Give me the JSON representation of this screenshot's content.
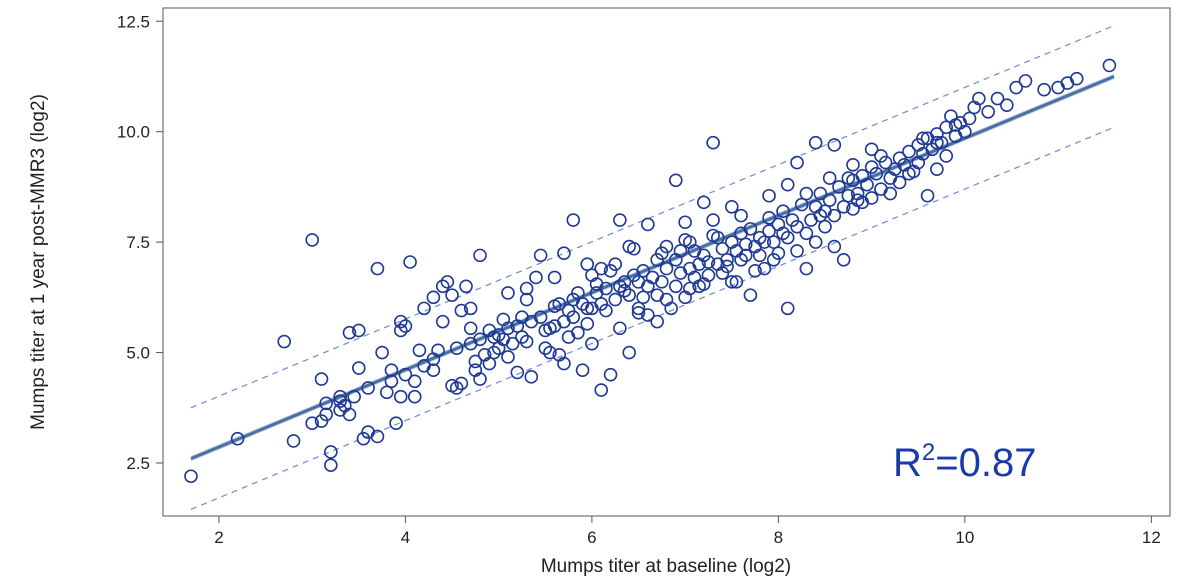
{
  "chart_data": {
    "type": "scatter",
    "title": "",
    "xlabel": "Mumps titer at baseline (log2)",
    "ylabel": "Mumps titer at 1 year post-MMR3 (log2)",
    "xlim": [
      1.4,
      12.2
    ],
    "ylim": [
      1.3,
      12.8
    ],
    "x_ticks": [
      {
        "value": 2,
        "label": "2"
      },
      {
        "value": 4,
        "label": "4"
      },
      {
        "value": 6,
        "label": "6"
      },
      {
        "value": 8,
        "label": "8"
      },
      {
        "value": 10,
        "label": "10"
      },
      {
        "value": 12,
        "label": "12"
      }
    ],
    "y_ticks": [
      {
        "value": 2.5,
        "label": "2.5"
      },
      {
        "value": 5.0,
        "label": "5.0"
      },
      {
        "value": 7.5,
        "label": "7.5"
      },
      {
        "value": 10.0,
        "label": "10.0"
      },
      {
        "value": 12.5,
        "label": "12.5"
      }
    ],
    "annotation": {
      "base": "R",
      "sup": "2",
      "value": "=0.87"
    },
    "colors": {
      "marker": "#1f3a93",
      "fit_line": "#4a6fa5",
      "confidence_band": "#b8c8e0",
      "prediction_band": "#7b8fd6",
      "annotation": "#1a3aa8"
    },
    "fit": {
      "x": [
        1.7,
        11.6
      ],
      "y": [
        2.6,
        11.25
      ],
      "band_halfwidth": 0.06
    },
    "prediction_band": {
      "upper": {
        "x": [
          1.7,
          11.6
        ],
        "y": [
          3.75,
          12.4
        ]
      },
      "lower": {
        "x": [
          1.7,
          11.6
        ],
        "y": [
          1.45,
          10.1
        ]
      }
    },
    "series": [
      {
        "points": [
          [
            1.7,
            2.2
          ],
          [
            2.2,
            3.05
          ],
          [
            2.8,
            3.0
          ],
          [
            2.7,
            5.25
          ],
          [
            3.0,
            7.55
          ],
          [
            3.1,
            4.4
          ],
          [
            3.0,
            3.4
          ],
          [
            3.1,
            3.45
          ],
          [
            3.15,
            3.85
          ],
          [
            3.2,
            2.45
          ],
          [
            3.2,
            2.75
          ],
          [
            3.3,
            3.7
          ],
          [
            3.35,
            3.8
          ],
          [
            3.3,
            3.9
          ],
          [
            3.4,
            3.6
          ],
          [
            3.45,
            4.0
          ],
          [
            3.4,
            5.45
          ],
          [
            3.5,
            5.5
          ],
          [
            3.55,
            3.05
          ],
          [
            3.6,
            3.2
          ],
          [
            3.7,
            6.9
          ],
          [
            3.75,
            5.0
          ],
          [
            3.8,
            4.1
          ],
          [
            3.7,
            3.1
          ],
          [
            3.85,
            4.35
          ],
          [
            3.9,
            3.4
          ],
          [
            3.95,
            4.0
          ],
          [
            3.95,
            5.7
          ],
          [
            3.95,
            5.5
          ],
          [
            4.0,
            4.5
          ],
          [
            4.1,
            4.0
          ],
          [
            4.1,
            4.35
          ],
          [
            4.05,
            7.05
          ],
          [
            4.2,
            4.7
          ],
          [
            4.2,
            6.0
          ],
          [
            4.3,
            6.25
          ],
          [
            4.3,
            4.85
          ],
          [
            4.35,
            5.05
          ],
          [
            4.4,
            6.5
          ],
          [
            4.45,
            6.6
          ],
          [
            4.5,
            4.25
          ],
          [
            4.55,
            4.2
          ],
          [
            4.6,
            4.3
          ],
          [
            4.5,
            6.3
          ],
          [
            4.65,
            6.5
          ],
          [
            4.7,
            6.0
          ],
          [
            4.7,
            5.2
          ],
          [
            4.75,
            4.8
          ],
          [
            4.75,
            4.6
          ],
          [
            4.8,
            5.3
          ],
          [
            4.8,
            4.4
          ],
          [
            4.85,
            4.95
          ],
          [
            4.9,
            5.5
          ],
          [
            4.9,
            4.75
          ],
          [
            4.95,
            5.0
          ],
          [
            5.0,
            5.4
          ],
          [
            5.0,
            5.1
          ],
          [
            5.05,
            5.3
          ],
          [
            5.1,
            4.9
          ],
          [
            5.1,
            5.55
          ],
          [
            5.15,
            5.2
          ],
          [
            5.2,
            5.6
          ],
          [
            5.2,
            4.55
          ],
          [
            5.25,
            5.8
          ],
          [
            5.3,
            5.25
          ],
          [
            5.3,
            6.45
          ],
          [
            5.35,
            4.45
          ],
          [
            5.45,
            5.8
          ],
          [
            5.45,
            7.2
          ],
          [
            5.5,
            5.5
          ],
          [
            5.5,
            5.1
          ],
          [
            5.55,
            5.0
          ],
          [
            5.6,
            5.6
          ],
          [
            5.6,
            6.05
          ],
          [
            5.65,
            4.95
          ],
          [
            5.7,
            4.75
          ],
          [
            5.7,
            5.7
          ],
          [
            5.75,
            5.35
          ],
          [
            5.8,
            6.2
          ],
          [
            5.8,
            5.8
          ],
          [
            5.85,
            5.45
          ],
          [
            5.9,
            4.6
          ],
          [
            5.95,
            6.0
          ],
          [
            5.95,
            5.65
          ],
          [
            6.0,
            6.0
          ],
          [
            6.0,
            5.2
          ],
          [
            6.05,
            6.35
          ],
          [
            6.1,
            6.1
          ],
          [
            6.1,
            4.15
          ],
          [
            6.15,
            5.95
          ],
          [
            6.2,
            4.5
          ],
          [
            6.25,
            6.2
          ],
          [
            6.25,
            7.0
          ],
          [
            6.3,
            6.5
          ],
          [
            6.3,
            5.55
          ],
          [
            6.35,
            6.4
          ],
          [
            6.4,
            7.4
          ],
          [
            6.4,
            5.0
          ],
          [
            6.45,
            7.35
          ],
          [
            6.5,
            6.6
          ],
          [
            6.5,
            6.0
          ],
          [
            6.55,
            6.85
          ],
          [
            6.6,
            5.85
          ],
          [
            6.6,
            6.5
          ],
          [
            6.65,
            6.7
          ],
          [
            6.7,
            7.1
          ],
          [
            6.7,
            6.3
          ],
          [
            6.75,
            6.6
          ],
          [
            6.8,
            7.4
          ],
          [
            6.8,
            6.9
          ],
          [
            6.85,
            6.0
          ],
          [
            6.9,
            6.5
          ],
          [
            6.9,
            7.1
          ],
          [
            6.95,
            6.8
          ],
          [
            7.0,
            7.55
          ],
          [
            7.0,
            6.25
          ],
          [
            7.05,
            6.9
          ],
          [
            7.1,
            6.7
          ],
          [
            7.1,
            7.3
          ],
          [
            7.15,
            7.0
          ],
          [
            7.2,
            6.55
          ],
          [
            7.2,
            7.2
          ],
          [
            7.25,
            6.75
          ],
          [
            7.3,
            7.65
          ],
          [
            7.3,
            8.0
          ],
          [
            7.35,
            7.0
          ],
          [
            7.4,
            6.8
          ],
          [
            7.4,
            7.35
          ],
          [
            7.45,
            7.1
          ],
          [
            7.5,
            6.6
          ],
          [
            7.5,
            7.5
          ],
          [
            7.55,
            7.3
          ],
          [
            7.6,
            7.1
          ],
          [
            7.6,
            7.7
          ],
          [
            7.65,
            7.45
          ],
          [
            7.7,
            6.3
          ],
          [
            7.7,
            7.8
          ],
          [
            7.75,
            7.4
          ],
          [
            7.8,
            7.6
          ],
          [
            7.8,
            7.2
          ],
          [
            7.85,
            6.9
          ],
          [
            7.9,
            7.75
          ],
          [
            7.9,
            8.05
          ],
          [
            7.95,
            7.5
          ],
          [
            8.0,
            7.9
          ],
          [
            8.0,
            7.25
          ],
          [
            8.05,
            8.2
          ],
          [
            8.1,
            7.6
          ],
          [
            8.1,
            6.0
          ],
          [
            8.15,
            8.0
          ],
          [
            8.2,
            7.85
          ],
          [
            8.2,
            7.3
          ],
          [
            8.25,
            8.35
          ],
          [
            8.3,
            7.7
          ],
          [
            8.3,
            6.9
          ],
          [
            8.35,
            8.0
          ],
          [
            8.4,
            8.3
          ],
          [
            8.4,
            7.5
          ],
          [
            8.45,
            8.6
          ],
          [
            8.5,
            8.2
          ],
          [
            8.5,
            7.85
          ],
          [
            8.55,
            8.45
          ],
          [
            8.6,
            8.1
          ],
          [
            8.6,
            7.4
          ],
          [
            8.65,
            8.75
          ],
          [
            8.7,
            8.3
          ],
          [
            8.7,
            7.1
          ],
          [
            8.75,
            8.55
          ],
          [
            8.8,
            8.9
          ],
          [
            8.8,
            8.25
          ],
          [
            8.85,
            8.6
          ],
          [
            8.9,
            9.0
          ],
          [
            8.9,
            8.4
          ],
          [
            8.95,
            8.8
          ],
          [
            9.0,
            9.2
          ],
          [
            9.0,
            8.5
          ],
          [
            9.05,
            9.05
          ],
          [
            9.1,
            8.7
          ],
          [
            9.15,
            9.3
          ],
          [
            9.2,
            8.95
          ],
          [
            9.2,
            8.6
          ],
          [
            9.25,
            9.15
          ],
          [
            9.3,
            9.4
          ],
          [
            9.3,
            8.85
          ],
          [
            9.35,
            9.25
          ],
          [
            9.4,
            9.55
          ],
          [
            9.45,
            9.1
          ],
          [
            9.5,
            9.7
          ],
          [
            9.5,
            9.3
          ],
          [
            9.55,
            9.5
          ],
          [
            9.6,
            9.85
          ],
          [
            9.6,
            8.55
          ],
          [
            9.65,
            9.6
          ],
          [
            9.7,
            9.95
          ],
          [
            9.7,
            9.15
          ],
          [
            9.75,
            9.75
          ],
          [
            9.8,
            10.1
          ],
          [
            9.8,
            9.45
          ],
          [
            9.85,
            10.35
          ],
          [
            9.9,
            9.9
          ],
          [
            9.95,
            10.2
          ],
          [
            10.0,
            10.0
          ],
          [
            10.05,
            10.3
          ],
          [
            10.1,
            10.55
          ],
          [
            10.15,
            10.75
          ],
          [
            10.25,
            10.45
          ],
          [
            10.35,
            10.75
          ],
          [
            10.45,
            10.6
          ],
          [
            10.55,
            11.0
          ],
          [
            10.65,
            11.15
          ],
          [
            10.85,
            10.95
          ],
          [
            11.0,
            11.0
          ],
          [
            11.1,
            11.1
          ],
          [
            11.2,
            11.2
          ],
          [
            11.55,
            11.5
          ],
          [
            6.3,
            8.0
          ],
          [
            6.6,
            7.9
          ],
          [
            6.9,
            8.9
          ],
          [
            7.0,
            7.95
          ],
          [
            7.2,
            8.4
          ],
          [
            7.3,
            9.75
          ],
          [
            7.5,
            8.3
          ],
          [
            7.6,
            8.1
          ],
          [
            7.9,
            8.55
          ],
          [
            8.1,
            8.8
          ],
          [
            8.2,
            9.3
          ],
          [
            8.4,
            9.75
          ],
          [
            8.6,
            9.7
          ],
          [
            8.8,
            9.25
          ],
          [
            9.0,
            9.6
          ],
          [
            5.8,
            8.0
          ],
          [
            5.95,
            7.0
          ],
          [
            5.6,
            6.7
          ],
          [
            5.7,
            7.25
          ],
          [
            5.4,
            6.7
          ],
          [
            5.3,
            6.2
          ],
          [
            5.1,
            6.35
          ],
          [
            4.8,
            7.2
          ],
          [
            4.6,
            5.95
          ],
          [
            6.1,
            6.9
          ],
          [
            6.4,
            6.3
          ],
          [
            6.7,
            5.7
          ],
          [
            6.2,
            6.85
          ],
          [
            6.5,
            5.9
          ],
          [
            7.05,
            7.5
          ],
          [
            7.15,
            6.5
          ],
          [
            7.25,
            7.05
          ],
          [
            7.35,
            7.6
          ],
          [
            7.45,
            6.95
          ],
          [
            7.55,
            6.6
          ],
          [
            7.65,
            7.2
          ],
          [
            7.75,
            6.85
          ],
          [
            7.85,
            7.5
          ],
          [
            7.95,
            7.1
          ],
          [
            8.05,
            7.7
          ],
          [
            6.05,
            6.55
          ],
          [
            5.85,
            6.35
          ],
          [
            5.65,
            6.1
          ],
          [
            5.55,
            5.55
          ],
          [
            5.35,
            5.7
          ],
          [
            5.25,
            5.35
          ],
          [
            5.05,
            5.75
          ],
          [
            4.95,
            5.35
          ],
          [
            4.7,
            5.55
          ],
          [
            4.55,
            5.1
          ],
          [
            4.4,
            5.7
          ],
          [
            4.3,
            4.6
          ],
          [
            4.15,
            5.05
          ],
          [
            4.0,
            5.6
          ],
          [
            3.85,
            4.6
          ],
          [
            3.6,
            4.2
          ],
          [
            3.5,
            4.65
          ],
          [
            3.3,
            4.0
          ],
          [
            3.15,
            3.6
          ],
          [
            6.8,
            6.2
          ],
          [
            6.95,
            7.3
          ],
          [
            7.05,
            6.45
          ],
          [
            6.75,
            7.25
          ],
          [
            6.55,
            6.25
          ],
          [
            6.45,
            6.75
          ],
          [
            6.35,
            6.6
          ],
          [
            6.15,
            6.45
          ],
          [
            6.0,
            6.75
          ],
          [
            5.9,
            6.1
          ],
          [
            5.75,
            5.95
          ],
          [
            8.3,
            8.6
          ],
          [
            8.45,
            8.1
          ],
          [
            8.55,
            8.95
          ],
          [
            8.75,
            8.95
          ],
          [
            8.85,
            8.45
          ],
          [
            9.1,
            9.45
          ],
          [
            9.4,
            9.05
          ],
          [
            9.55,
            9.85
          ],
          [
            9.7,
            9.75
          ],
          [
            9.9,
            10.15
          ]
        ]
      }
    ]
  }
}
